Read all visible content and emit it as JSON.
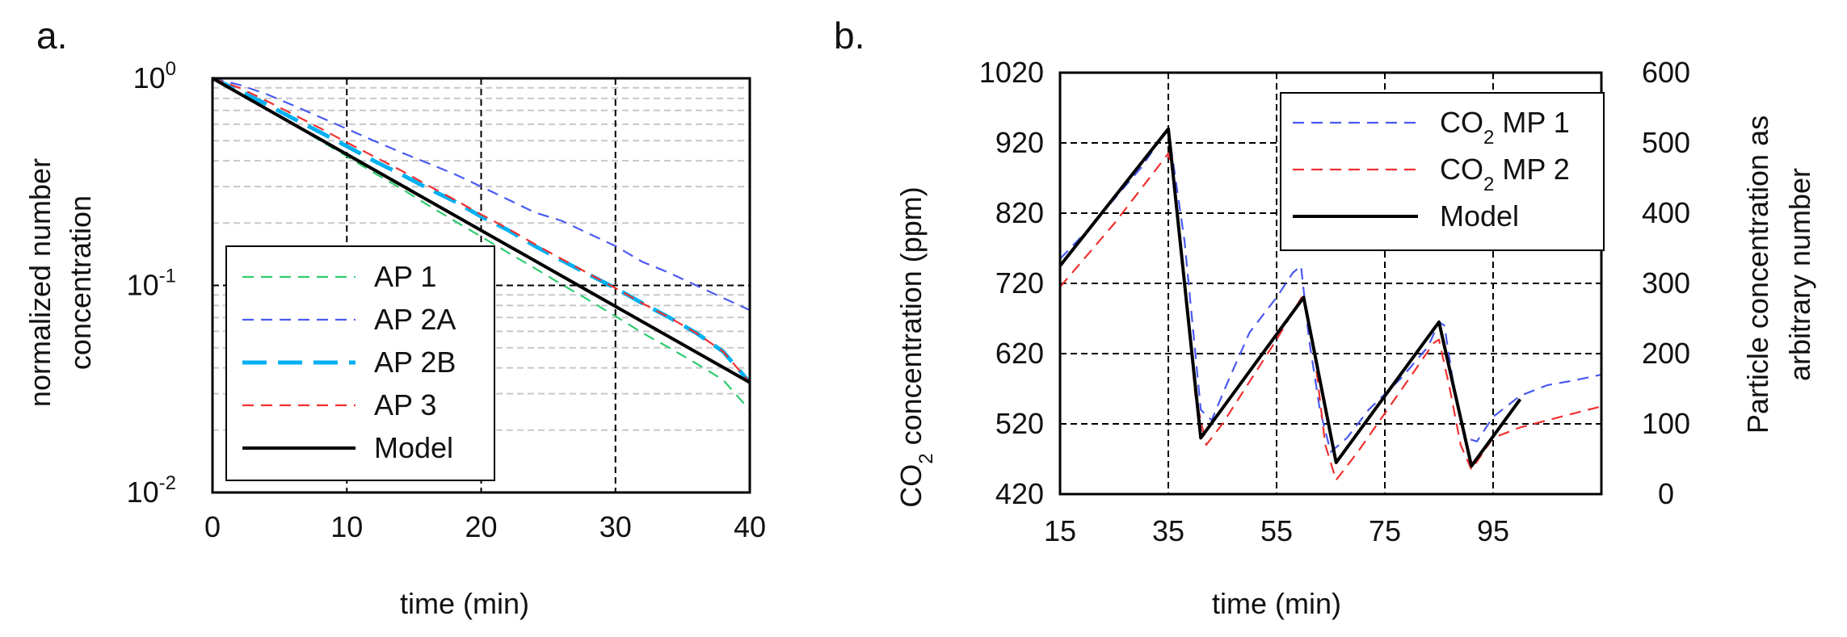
{
  "chart_data": [
    {
      "type": "line",
      "panel_label": "a.",
      "xlabel": "time (min)",
      "ylabel_line1": "normalized number",
      "ylabel_line2": "concentration",
      "yscale": "log",
      "xlim": [
        0,
        40
      ],
      "ylim": [
        0.01,
        1
      ],
      "xticks": [
        0,
        10,
        20,
        30,
        40
      ],
      "xtick_labels": [
        "0",
        "10",
        "20",
        "30",
        "40"
      ],
      "ytick_base": "10",
      "ytick_exponents": [
        "0",
        "-1",
        "-2"
      ],
      "ytick_values": [
        1,
        0.1,
        0.01
      ],
      "grid": "major and minor",
      "legend_position": "lower-left",
      "series": [
        {
          "name": "AP 1",
          "color": "#2ecc71",
          "style": "dashed",
          "x": [
            0,
            2,
            4,
            6,
            8,
            10,
            12,
            14,
            16,
            18,
            20,
            22,
            24,
            26,
            28,
            30,
            32,
            34,
            36,
            38,
            40
          ],
          "y": [
            1,
            0.855,
            0.715,
            0.6,
            0.5,
            0.42,
            0.35,
            0.295,
            0.245,
            0.205,
            0.172,
            0.144,
            0.121,
            0.101,
            0.085,
            0.071,
            0.059,
            0.05,
            0.042,
            0.035,
            0.025
          ]
        },
        {
          "name": "AP 2A",
          "color": "#4a5af0",
          "style": "dashed",
          "x": [
            0,
            2,
            4,
            6,
            8,
            10,
            12,
            14,
            16,
            18,
            20,
            22,
            24,
            26,
            28,
            30,
            32,
            34,
            36,
            38,
            40
          ],
          "y": [
            1,
            0.93,
            0.84,
            0.74,
            0.65,
            0.57,
            0.5,
            0.44,
            0.39,
            0.345,
            0.3,
            0.26,
            0.225,
            0.205,
            0.178,
            0.155,
            0.13,
            0.115,
            0.1,
            0.087,
            0.076
          ]
        },
        {
          "name": "AP 2B",
          "color": "#00b0f0",
          "style": "longdash",
          "x": [
            0,
            2,
            4,
            6,
            8,
            10,
            12,
            14,
            16,
            18,
            20,
            22,
            24,
            26,
            28,
            30,
            32,
            34,
            36,
            38,
            40
          ],
          "y": [
            1,
            0.87,
            0.75,
            0.64,
            0.55,
            0.47,
            0.4,
            0.345,
            0.295,
            0.255,
            0.215,
            0.185,
            0.155,
            0.132,
            0.113,
            0.097,
            0.082,
            0.07,
            0.059,
            0.048,
            0.034
          ]
        },
        {
          "name": "AP 3",
          "color": "#f03030",
          "style": "dashed",
          "x": [
            0,
            2,
            4,
            6,
            8,
            10,
            12,
            14,
            16,
            18,
            20,
            22,
            24,
            26,
            28,
            30,
            32,
            34,
            36,
            38,
            40
          ],
          "y": [
            1,
            0.9,
            0.78,
            0.67,
            0.575,
            0.49,
            0.42,
            0.36,
            0.305,
            0.26,
            0.22,
            0.188,
            0.158,
            0.134,
            0.114,
            0.097,
            0.082,
            0.07,
            0.059,
            0.048,
            0.034
          ]
        },
        {
          "name": "Model",
          "color": "#000000",
          "style": "solid",
          "x": [
            0,
            40
          ],
          "y": [
            1,
            0.034
          ]
        }
      ]
    },
    {
      "type": "line",
      "panel_label": "b.",
      "xlabel": "time (min)",
      "ylabel_left_main": "CO",
      "ylabel_left_sub": "2",
      "ylabel_left_rest": " concentration  (ppm)",
      "ylabel_right_line1": "Particle concentration as",
      "ylabel_right_line2": "arbitrary number",
      "xlim": [
        15,
        115
      ],
      "ylim_left": [
        420,
        1020
      ],
      "ylim_right": [
        0,
        600
      ],
      "xticks": [
        15,
        35,
        55,
        75,
        95
      ],
      "xtick_labels": [
        "15",
        "35",
        "55",
        "75",
        "95"
      ],
      "yticks_left": [
        420,
        520,
        620,
        720,
        820,
        920,
        1020
      ],
      "yticks_left_labels": [
        "420",
        "520",
        "620",
        "720",
        "820",
        "920",
        "1020"
      ],
      "yticks_right": [
        0,
        100,
        200,
        300,
        400,
        500,
        600
      ],
      "yticks_right_labels": [
        "0",
        "100",
        "200",
        "300",
        "400",
        "500",
        "600"
      ],
      "grid": "dashed",
      "legend_position": "top-right",
      "series": [
        {
          "name": "CO2 MP 1",
          "legend_main": "CO",
          "legend_sub": "2",
          "legend_rest": " MP 1",
          "color": "#4a5af0",
          "style": "dashed",
          "x": [
            15,
            20,
            25,
            30,
            34,
            35,
            38,
            40,
            41,
            43,
            46,
            50,
            55,
            58,
            59.5,
            61,
            63,
            65,
            68,
            72,
            78,
            83,
            85,
            86,
            88,
            90,
            92,
            95,
            100,
            105,
            110,
            115
          ],
          "y": [
            755,
            795,
            840,
            885,
            930,
            940,
            780,
            620,
            540,
            525,
            580,
            650,
            700,
            735,
            745,
            640,
            540,
            480,
            500,
            540,
            585,
            630,
            665,
            660,
            560,
            500,
            495,
            530,
            560,
            575,
            582,
            590
          ]
        },
        {
          "name": "CO2 MP 2",
          "legend_main": "CO",
          "legend_sub": "2",
          "legend_rest": " MP 2",
          "color": "#f03030",
          "style": "dashed",
          "x": [
            15,
            20,
            25,
            30,
            35,
            36,
            38,
            40,
            42,
            45,
            50,
            55,
            60,
            62,
            64,
            66,
            70,
            75,
            80,
            84,
            85,
            87,
            89,
            91,
            95,
            100,
            105,
            110,
            115
          ],
          "y": [
            715,
            760,
            805,
            855,
            905,
            870,
            720,
            560,
            490,
            520,
            580,
            640,
            705,
            620,
            490,
            440,
            480,
            535,
            590,
            635,
            640,
            570,
            490,
            455,
            500,
            515,
            525,
            535,
            545
          ]
        },
        {
          "name": "Model",
          "legend_main": "Model",
          "legend_sub": "",
          "legend_rest": "",
          "color": "#000000",
          "style": "solid",
          "x": [
            15,
            35,
            41,
            60,
            66,
            85,
            91,
            100
          ],
          "y": [
            745,
            940,
            500,
            700,
            465,
            665,
            460,
            555
          ]
        }
      ]
    }
  ]
}
